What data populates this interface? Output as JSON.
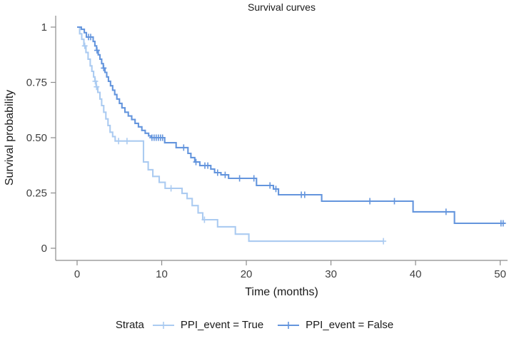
{
  "chart_data": {
    "type": "line",
    "subtype": "kaplan-meier-step",
    "title": "Survival curves",
    "xlabel": "Time (months)",
    "ylabel": "Survival probability",
    "xlim": [
      0,
      50
    ],
    "ylim": [
      0,
      1
    ],
    "xticks": [
      0,
      10,
      20,
      30,
      40,
      50
    ],
    "yticks": [
      0,
      0.25,
      0.5,
      0.75,
      1
    ],
    "ytick_labels": [
      "0",
      "0.25",
      "0.50",
      "0.75",
      "1"
    ],
    "grid": false,
    "legend_position": "bottom",
    "legend_title": "Strata",
    "axis_color": "#8c8c8c",
    "series": [
      {
        "name": "PPI_event = True",
        "color": "#abcbf1",
        "points": [
          [
            0,
            1.0
          ],
          [
            0.3,
            0.97
          ],
          [
            0.55,
            0.945
          ],
          [
            0.8,
            0.915
          ],
          [
            1.05,
            0.885
          ],
          [
            1.3,
            0.855
          ],
          [
            1.55,
            0.825
          ],
          [
            1.75,
            0.8
          ],
          [
            1.95,
            0.775
          ],
          [
            2.1,
            0.755
          ],
          [
            2.25,
            0.73
          ],
          [
            2.45,
            0.705
          ],
          [
            2.7,
            0.675
          ],
          [
            2.9,
            0.645
          ],
          [
            3.15,
            0.615
          ],
          [
            3.4,
            0.585
          ],
          [
            3.65,
            0.555
          ],
          [
            3.9,
            0.525
          ],
          [
            4.2,
            0.505
          ],
          [
            4.5,
            0.485
          ],
          [
            7.85,
            0.39
          ],
          [
            8.4,
            0.355
          ],
          [
            8.95,
            0.325
          ],
          [
            9.7,
            0.298
          ],
          [
            10.4,
            0.271
          ],
          [
            12.4,
            0.248
          ],
          [
            13.0,
            0.225
          ],
          [
            13.6,
            0.193
          ],
          [
            14.3,
            0.16
          ],
          [
            14.85,
            0.129
          ],
          [
            16.6,
            0.097
          ],
          [
            18.7,
            0.064
          ],
          [
            20.3,
            0.032
          ],
          [
            36.2,
            0.032
          ]
        ],
        "censors": [
          [
            0.9,
            0.915
          ],
          [
            2.15,
            0.755
          ],
          [
            2.3,
            0.73
          ],
          [
            4.9,
            0.485
          ],
          [
            5.9,
            0.485
          ],
          [
            11.1,
            0.271
          ],
          [
            15.05,
            0.129
          ],
          [
            36.2,
            0.032
          ]
        ]
      },
      {
        "name": "PPI_event = False",
        "color": "#6495dd",
        "points": [
          [
            0,
            1.0
          ],
          [
            0.5,
            0.99
          ],
          [
            0.85,
            0.975
          ],
          [
            1.1,
            0.955
          ],
          [
            1.9,
            0.935
          ],
          [
            2.1,
            0.915
          ],
          [
            2.3,
            0.895
          ],
          [
            2.5,
            0.875
          ],
          [
            2.7,
            0.855
          ],
          [
            2.9,
            0.835
          ],
          [
            3.1,
            0.815
          ],
          [
            3.3,
            0.795
          ],
          [
            3.5,
            0.775
          ],
          [
            3.7,
            0.755
          ],
          [
            3.95,
            0.735
          ],
          [
            4.2,
            0.715
          ],
          [
            4.45,
            0.695
          ],
          [
            4.7,
            0.675
          ],
          [
            5.0,
            0.655
          ],
          [
            5.3,
            0.635
          ],
          [
            5.65,
            0.615
          ],
          [
            6.05,
            0.598
          ],
          [
            6.45,
            0.582
          ],
          [
            6.85,
            0.565
          ],
          [
            7.25,
            0.549
          ],
          [
            7.65,
            0.533
          ],
          [
            8.05,
            0.52
          ],
          [
            8.45,
            0.508
          ],
          [
            8.75,
            0.5
          ],
          [
            10.35,
            0.477
          ],
          [
            11.7,
            0.455
          ],
          [
            13.1,
            0.429
          ],
          [
            13.45,
            0.41
          ],
          [
            13.9,
            0.39
          ],
          [
            14.5,
            0.374
          ],
          [
            15.8,
            0.358
          ],
          [
            16.25,
            0.342
          ],
          [
            17.0,
            0.332
          ],
          [
            17.9,
            0.316
          ],
          [
            21.2,
            0.284
          ],
          [
            23.2,
            0.268
          ],
          [
            23.8,
            0.242
          ],
          [
            28.9,
            0.213
          ],
          [
            39.7,
            0.165
          ],
          [
            44.6,
            0.113
          ],
          [
            50.6,
            0.113
          ]
        ],
        "censors": [
          [
            1.35,
            0.955
          ],
          [
            1.6,
            0.955
          ],
          [
            2.35,
            0.895
          ],
          [
            3.15,
            0.815
          ],
          [
            8.85,
            0.5
          ],
          [
            9.1,
            0.5
          ],
          [
            9.35,
            0.5
          ],
          [
            9.6,
            0.5
          ],
          [
            9.85,
            0.5
          ],
          [
            10.1,
            0.5
          ],
          [
            12.6,
            0.455
          ],
          [
            14.05,
            0.39
          ],
          [
            15.1,
            0.374
          ],
          [
            15.45,
            0.374
          ],
          [
            16.6,
            0.342
          ],
          [
            17.5,
            0.332
          ],
          [
            19.2,
            0.316
          ],
          [
            20.9,
            0.316
          ],
          [
            22.8,
            0.284
          ],
          [
            23.5,
            0.268
          ],
          [
            26.5,
            0.242
          ],
          [
            26.9,
            0.242
          ],
          [
            34.6,
            0.213
          ],
          [
            37.5,
            0.213
          ],
          [
            43.6,
            0.165
          ],
          [
            50.1,
            0.113
          ],
          [
            50.35,
            0.113
          ]
        ]
      }
    ]
  }
}
